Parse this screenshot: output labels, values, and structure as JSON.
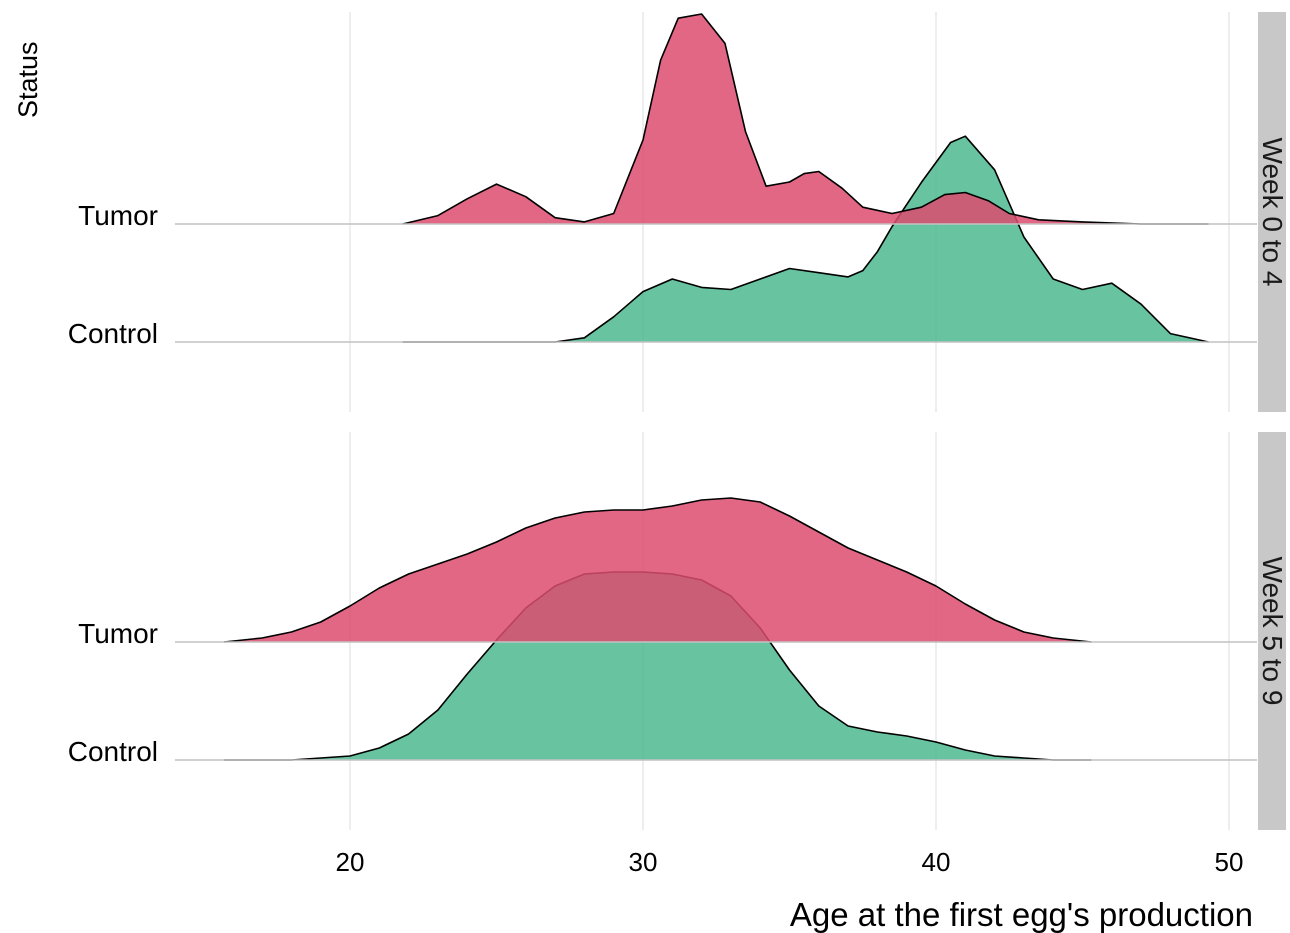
{
  "chart_data": {
    "type": "ridgeline",
    "xlabel": "Age at the first egg's production",
    "ylabel": "Status",
    "xlim": [
      13.5,
      51
    ],
    "x_ticks": [
      20,
      30,
      40,
      50
    ],
    "grid": "vertical major gridlines",
    "colors": {
      "Tumor": "#DC4C70",
      "Control": "#4DB98F",
      "strip": "#C8C8C8"
    },
    "facets": [
      {
        "label": "Week  0  to  4",
        "categories": [
          "Tumor",
          "Control"
        ],
        "series": [
          {
            "name": "Tumor",
            "x": [
              21.8,
              23.0,
              24.0,
              25.0,
              26.0,
              27.0,
              28.0,
              29.0,
              30.0,
              30.6,
              31.2,
              32.0,
              32.8,
              33.5,
              34.2,
              35.0,
              35.5,
              36.0,
              36.8,
              37.5,
              38.5,
              39.5,
              40.3,
              41.0,
              41.8,
              42.5,
              43.5,
              45.0,
              47.0,
              49.3
            ],
            "y": [
              0.0,
              0.04,
              0.12,
              0.19,
              0.13,
              0.03,
              0.01,
              0.05,
              0.4,
              0.78,
              0.98,
              1.0,
              0.86,
              0.44,
              0.18,
              0.2,
              0.24,
              0.25,
              0.17,
              0.08,
              0.05,
              0.08,
              0.14,
              0.15,
              0.11,
              0.05,
              0.02,
              0.01,
              0.0,
              0.0
            ]
          },
          {
            "name": "Control",
            "x": [
              21.8,
              25.0,
              27.0,
              28.0,
              29.0,
              30.0,
              31.0,
              32.0,
              33.0,
              34.0,
              35.0,
              36.0,
              37.0,
              37.5,
              38.0,
              38.5,
              39.5,
              40.5,
              41.0,
              42.0,
              43.0,
              44.0,
              45.0,
              46.0,
              47.0,
              48.0,
              49.3
            ],
            "y": [
              0.0,
              0.0,
              0.0,
              0.02,
              0.12,
              0.24,
              0.3,
              0.26,
              0.25,
              0.3,
              0.35,
              0.33,
              0.31,
              0.34,
              0.43,
              0.55,
              0.76,
              0.95,
              0.98,
              0.82,
              0.5,
              0.3,
              0.25,
              0.28,
              0.18,
              0.04,
              0.0
            ]
          }
        ]
      },
      {
        "label": "Week  5  to  9",
        "categories": [
          "Tumor",
          "Control"
        ],
        "series": [
          {
            "name": "Tumor",
            "x": [
              15.7,
              17.0,
              18.0,
              19.0,
              20.0,
              21.0,
              22.0,
              23.0,
              24.0,
              25.0,
              26.0,
              27.0,
              28.0,
              29.0,
              30.0,
              31.0,
              32.0,
              33.0,
              34.0,
              35.0,
              36.0,
              37.0,
              38.0,
              39.0,
              40.0,
              41.0,
              42.0,
              43.0,
              44.0,
              45.3
            ],
            "y": [
              0.0,
              0.02,
              0.05,
              0.1,
              0.18,
              0.27,
              0.34,
              0.39,
              0.44,
              0.5,
              0.57,
              0.62,
              0.65,
              0.66,
              0.66,
              0.68,
              0.71,
              0.72,
              0.7,
              0.63,
              0.55,
              0.47,
              0.41,
              0.35,
              0.28,
              0.19,
              0.11,
              0.05,
              0.02,
              0.0
            ]
          },
          {
            "name": "Control",
            "x": [
              15.7,
              18.0,
              19.0,
              20.0,
              21.0,
              22.0,
              23.0,
              24.0,
              25.0,
              26.0,
              27.0,
              28.0,
              29.0,
              30.0,
              31.0,
              32.0,
              33.0,
              34.0,
              35.0,
              36.0,
              37.0,
              38.0,
              39.0,
              40.0,
              41.0,
              42.0,
              43.0,
              44.0,
              45.3
            ],
            "y": [
              0.0,
              0.0,
              0.01,
              0.02,
              0.06,
              0.13,
              0.25,
              0.43,
              0.6,
              0.76,
              0.87,
              0.93,
              0.94,
              0.94,
              0.93,
              0.9,
              0.82,
              0.66,
              0.45,
              0.27,
              0.17,
              0.14,
              0.12,
              0.09,
              0.05,
              0.02,
              0.01,
              0.0,
              0.0
            ]
          }
        ]
      }
    ]
  }
}
